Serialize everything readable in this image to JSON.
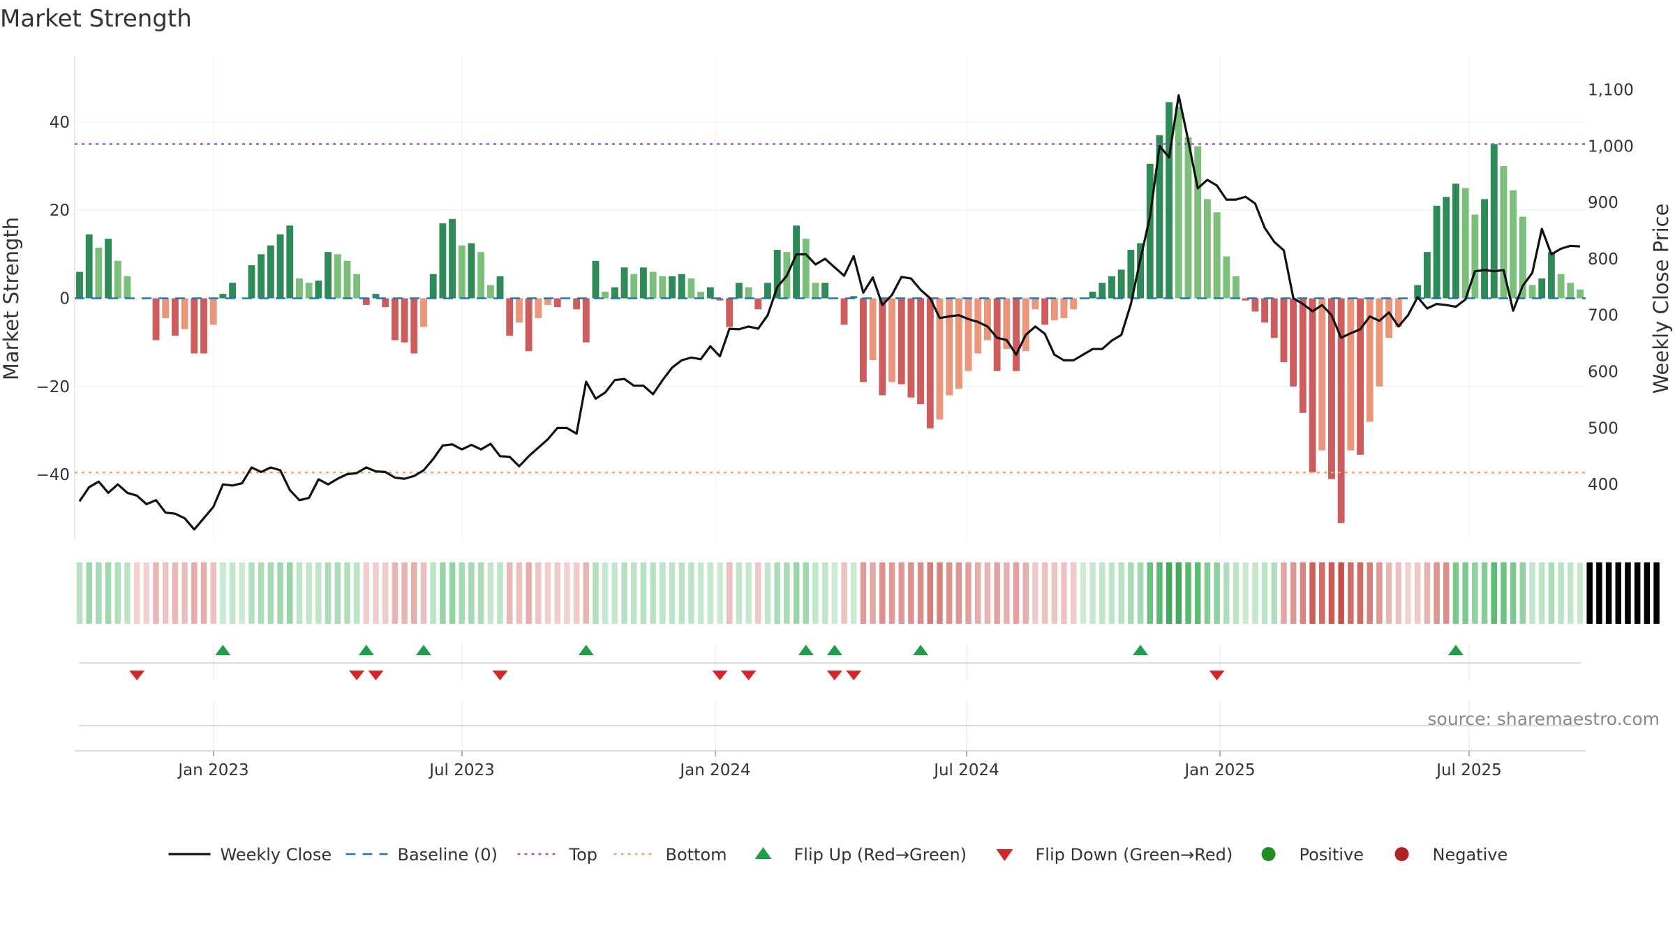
{
  "title": "Market Strength",
  "source": "source: sharemaestro.com",
  "colors": {
    "pos_strong": "#2e8b57",
    "pos_light": "#7bbf7b",
    "neg_strong": "#cd5c5c",
    "neg_light": "#e9967a",
    "close": "#111111",
    "baseline": "#1f77b4",
    "top": "#9b4fd6",
    "bottom": "#f0a060",
    "flip_up": "#1e9e4a",
    "flip_down": "#d62728",
    "positive": "#228b22",
    "negative": "#b22222"
  },
  "chart_data": {
    "type": "bar",
    "xlabels": [
      "Jan 2023",
      "Jul 2023",
      "Jan 2024",
      "Jul 2024",
      "Jan 2025",
      "Jul 2025"
    ],
    "ylabel_left": "Market Strength",
    "ylabel_right": "Weekly Close Price",
    "yticks_left": [
      "−40",
      "−20",
      "0",
      "20",
      "40"
    ],
    "ytick_values_left": [
      -40,
      -20,
      0,
      20,
      40
    ],
    "ylim_left": [
      -55,
      55
    ],
    "yticks_right": [
      "400",
      "500",
      "600",
      "700",
      "800",
      "900",
      "1,000",
      "1,100"
    ],
    "ytick_values_right": [
      400,
      500,
      600,
      700,
      800,
      900,
      1000,
      1100
    ],
    "ylim_right": [
      300,
      1160
    ],
    "top_level": 35,
    "bottom_level": -39.5,
    "strength": [
      6,
      14.5,
      11.5,
      13.5,
      8.5,
      5,
      0,
      0,
      -9.5,
      -4.5,
      -8.5,
      -7,
      -12.5,
      -12.5,
      -6,
      1,
      3.5,
      0,
      7.5,
      10,
      12,
      14.5,
      16.5,
      4.5,
      3.5,
      4,
      10.5,
      10,
      8.5,
      5.5,
      -1.5,
      1,
      -2,
      -9.5,
      -10,
      -12.5,
      -6.5,
      5.5,
      17,
      18,
      12,
      12.5,
      10.5,
      3,
      5,
      -8.5,
      -5.5,
      -12,
      -4.5,
      -1.5,
      -2,
      0,
      -2.5,
      -10,
      8.5,
      1.5,
      2.5,
      7,
      5.5,
      7,
      6,
      5,
      5,
      5.5,
      4.5,
      1.5,
      2.5,
      -0.5,
      -6.5,
      3.5,
      2.5,
      -2.5,
      3.5,
      11,
      10.5,
      16.5,
      13.5,
      3.5,
      3.5,
      0,
      -6,
      0.5,
      -19,
      -14,
      -22,
      -19,
      -19.5,
      -22.5,
      -24,
      -29.5,
      -27.5,
      -22,
      -20.5,
      -16.5,
      -12.5,
      -9.5,
      -16.5,
      -11.5,
      -16.5,
      -12,
      -2.5,
      -6,
      -5,
      -4.5,
      -2.5,
      0,
      1.5,
      3.5,
      5,
      6.5,
      11,
      12.5,
      30.5,
      37,
      44.5,
      43.5,
      36.5,
      34.5,
      22.5,
      19.5,
      9.5,
      5,
      -0.5,
      -3,
      -5.5,
      -9,
      -14.5,
      -20,
      -26,
      -39.5,
      -34.5,
      -41,
      -51,
      -34.5,
      -35.5,
      -28,
      -20,
      -9,
      -6.5,
      0,
      3,
      10.5,
      21,
      23,
      26,
      25,
      19,
      22.5,
      35,
      30,
      24.5,
      18.5,
      3,
      4.5,
      10.5,
      5.5,
      3.5,
      2
    ],
    "close": [
      370,
      395,
      405,
      385,
      400,
      385,
      380,
      365,
      372,
      350,
      348,
      340,
      320,
      340,
      360,
      400,
      398,
      402,
      430,
      422,
      430,
      425,
      390,
      372,
      376,
      409,
      400,
      410,
      418,
      420,
      430,
      423,
      422,
      412,
      410,
      415,
      425,
      445,
      469,
      471,
      462,
      470,
      462,
      472,
      450,
      449,
      432,
      450,
      465,
      480,
      500,
      500,
      490,
      582,
      552,
      563,
      585,
      587,
      575,
      575,
      560,
      585,
      607,
      620,
      625,
      622,
      645,
      627,
      676,
      675,
      680,
      676,
      700,
      750,
      770,
      808,
      808,
      790,
      800,
      785,
      770,
      805,
      740,
      767,
      718,
      736,
      768,
      765,
      745,
      730,
      695,
      698,
      700,
      693,
      688,
      680,
      660,
      656,
      630,
      665,
      680,
      667,
      630,
      620,
      620,
      630,
      640,
      640,
      655,
      665,
      720,
      800,
      875,
      1000,
      980,
      1090,
      1010,
      925,
      940,
      930,
      905,
      905,
      910,
      898,
      855,
      830,
      815,
      730,
      720,
      707,
      718,
      700,
      660,
      668,
      675,
      698,
      690,
      705,
      680,
      700,
      732,
      712,
      720,
      718,
      715,
      728,
      778,
      780,
      778,
      780,
      708,
      752,
      775,
      853,
      808,
      818,
      823,
      822
    ],
    "strip": [
      1,
      1,
      1,
      1,
      1,
      1,
      -1,
      -1,
      -1,
      -1,
      -1,
      -1,
      -1,
      -1,
      -1,
      1,
      1,
      1,
      1,
      1,
      1,
      1,
      1,
      1,
      1,
      1,
      1,
      1,
      1,
      1,
      -1,
      -1,
      -1,
      -1,
      -1,
      -1,
      -1,
      1,
      1,
      1,
      1,
      1,
      1,
      1,
      1,
      -1,
      -1,
      -1,
      -1,
      -1,
      -1,
      -1,
      -1,
      -1,
      1,
      1,
      1,
      1,
      1,
      1,
      1,
      1,
      1,
      1,
      1,
      1,
      1,
      1,
      -1,
      1,
      1,
      -1,
      1,
      1,
      1,
      1,
      1,
      1,
      1,
      1,
      -1,
      1,
      -1,
      -1,
      -1,
      -1,
      -1,
      -1,
      -1,
      -1,
      -1,
      -1,
      -1,
      -1,
      -1,
      -1,
      -1,
      -1,
      -1,
      -1,
      -1,
      -1,
      -1,
      -1,
      -1,
      1,
      1,
      1,
      1,
      1,
      1,
      1,
      1,
      1,
      1,
      1,
      1,
      1,
      1,
      1,
      1,
      1,
      1,
      1,
      1,
      1,
      -1,
      -1,
      -1,
      -1,
      -1,
      -1,
      -1,
      -1,
      -1,
      -1,
      -1,
      -1,
      -1,
      -1,
      -1,
      -1,
      -1,
      -1,
      1,
      1,
      1,
      1,
      1,
      1,
      1,
      1,
      1,
      1,
      1,
      1,
      1,
      1,
      1,
      1,
      1,
      1,
      1,
      1,
      1,
      1
    ],
    "flip_up_weeks": [
      15,
      30,
      36,
      53,
      76,
      79,
      88,
      111,
      144
    ],
    "flip_down_weeks": [
      6,
      29,
      31,
      44,
      67,
      70,
      79,
      81,
      119
    ]
  },
  "legend": [
    {
      "label": "Weekly Close",
      "icon": "line-icon"
    },
    {
      "label": "Baseline (0)",
      "icon": "dash-icon"
    },
    {
      "label": "Top",
      "icon": "dotted-line-icon"
    },
    {
      "label": "Bottom",
      "icon": "dotted-line-icon"
    },
    {
      "label": "Flip Up (Red→Green)",
      "icon": "triangle-up-icon"
    },
    {
      "label": "Flip Down (Green→Red)",
      "icon": "triangle-down-icon"
    },
    {
      "label": "Positive",
      "icon": "circle-icon"
    },
    {
      "label": "Negative",
      "icon": "circle-icon"
    }
  ]
}
